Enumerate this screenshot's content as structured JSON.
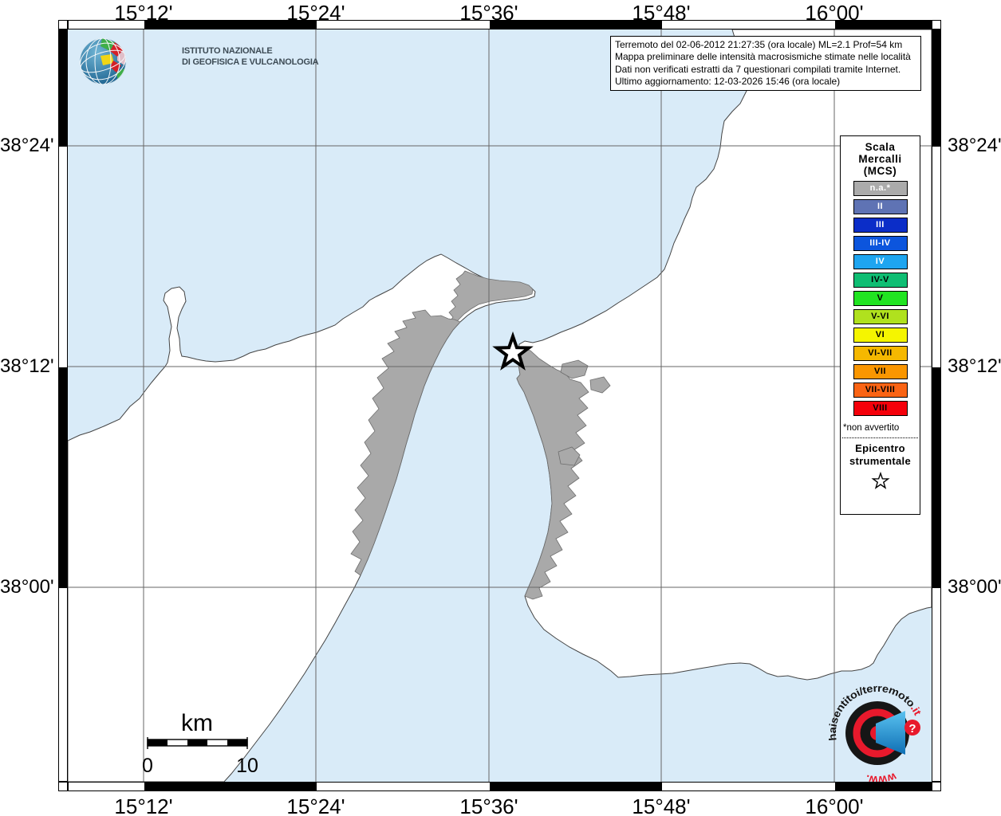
{
  "branding": {
    "institute_line1": "ISTITUTO NAZIONALE",
    "institute_line2": "DI GEOFISICA E VULCANOLOGIA"
  },
  "info_box": {
    "line1": "Terremoto del 02-06-2012 21:27:35 (ora locale) ML=2.1 Prof=54 km",
    "line2": "Mappa preliminare delle intensità macrosismiche stimate nelle località",
    "line3": "Dati non verificati estratti da 7 questionari compilati tramite Internet.",
    "line4": "Ultimo aggiornamento: 12-03-2026 15:46 (ora locale)"
  },
  "axes": {
    "lon": [
      "15°12'",
      "15°24'",
      "15°36'",
      "15°48'",
      "16°00'"
    ],
    "lat": [
      "38°24'",
      "38°12'",
      "38°00'"
    ]
  },
  "legend": {
    "title1": "Scala",
    "title2": "Mercalli",
    "title3": "(MCS)",
    "items": [
      {
        "label": "n.a.*",
        "color": "#ababab",
        "text": "#ffffff"
      },
      {
        "label": "II",
        "color": "#5f73b4",
        "text": "#ffffff"
      },
      {
        "label": "III",
        "color": "#0b2dc8",
        "text": "#ffffff"
      },
      {
        "label": "III-IV",
        "color": "#0c55dd",
        "text": "#ffffff"
      },
      {
        "label": "IV",
        "color": "#1ea5f0",
        "text": "#ffffff"
      },
      {
        "label": "IV-V",
        "color": "#0fbe73",
        "text": "#000000"
      },
      {
        "label": "V",
        "color": "#21e421",
        "text": "#000000"
      },
      {
        "label": "V-VI",
        "color": "#b0e11e",
        "text": "#000000"
      },
      {
        "label": "VI",
        "color": "#f5f500",
        "text": "#000000"
      },
      {
        "label": "VI-VII",
        "color": "#f5b800",
        "text": "#000000"
      },
      {
        "label": "VII",
        "color": "#fa9600",
        "text": "#000000"
      },
      {
        "label": "VII-VIII",
        "color": "#fa6414",
        "text": "#000000"
      },
      {
        "label": "VIII",
        "color": "#f5000a",
        "text": "#000000"
      }
    ],
    "footnote": "*non avvertito",
    "epicenter1": "Epicentro",
    "epicenter2": "strumentale"
  },
  "scale_bar": {
    "unit": "km",
    "start": "0",
    "end": "10"
  },
  "watermark": {
    "arc_black": "haisentitoi/terremoto",
    "arc_red": ".it",
    "bottom_red": "www.",
    "question": "?"
  },
  "map_colors": {
    "sea": "#d9ebf8",
    "land": "#ffffff",
    "urban": "#a9a9a9",
    "accent_red": "#e8192c",
    "megaphone_blue": "#1e8fd5"
  }
}
